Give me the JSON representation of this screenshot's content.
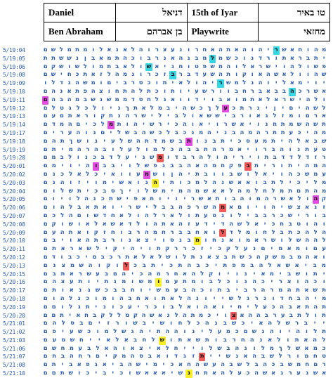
{
  "header": {
    "first_name_en": "Daniel",
    "first_name_he": "דניאל",
    "date_en": "15th of Iyar",
    "date_he": "טו באיר",
    "surname_en": "Ben Abraham",
    "surname_he": "בן אברהם",
    "profession_en": "Playwrite",
    "profession_he": "מחזאי"
  },
  "colors": {
    "text": "#2a5db0",
    "highlight_cyan": "#35d7e6",
    "highlight_yellow": "#f6ee2b",
    "highlight_magenta": "#e24ee0",
    "highlight_red": "#f05a5a"
  },
  "grid": {
    "rows": [
      {
        "date": "5/19:04",
        "text": "מהוחאשריהוהאתהאחרונעצרוהלאנאלומתמלשם",
        "hl": [
          {
            "i": 6,
            "c": "cyan"
          }
        ]
      },
      {
        "date": "5/19:05",
        "text": "יתבראתורדנוכשמלמבנהאנרבוכהתמאבןנששתת",
        "hl": [
          {
            "i": 14,
            "c": "cyan"
          }
        ]
      },
      {
        "date": "5/19:06",
        "text": "פשולהוישראלוהמשפטוחניאשולאבתמולשושקם",
        "hl": [
          {
            "i": 22,
            "c": "cyan"
          }
        ]
      },
      {
        "date": "5/19:08",
        "text": "שהוולאשהאוקותהשעדברבזכרונמהלזאתכחישם",
        "hl": [
          {
            "i": 19,
            "c": "cyan"
          }
        ]
      },
      {
        "date": "5/19:09",
        "text": "יוימאליוהנלמשריהולאיתוכסרביםומשהגדלו",
        "hl": [
          {
            "i": 13,
            "c": "cyan"
          }
        ]
      },
      {
        "date": "5/19:10",
        "text": "אשרכהבבאברחבוורשעיותוכתלהתחוצהפתאנהם",
        "hl": [
          {
            "i": 4,
            "c": "cyan"
          }
        ]
      },
      {
        "date": "5/19:11",
        "text": "ולהישראלאתמואבוידוואנלחסדממשנשבמהבהם",
        "hl": [
          {
            "i": 35,
            "c": "magenta"
          },
          {
            "i": 36,
            "c": "red"
          }
        ]
      },
      {
        "date": "5/19:12",
        "text": "לשהיםיןינרתכעלךכשהיבמלאתךניולכלגטלם",
        "hl": [
          {
            "i": 12,
            "c": "magenta"
          },
          {
            "i": 35,
            "c": "red"
          }
        ]
      },
      {
        "date": "5/19:13",
        "text": "ארםומזלגאורביששאולבילישרהנתקוראתםעם",
        "hl": []
      },
      {
        "date": "5/19:14",
        "text": "תשהשמתחנויאשרויאוהכירשיהותמלכיםהמדם",
        "hl": [
          {
            "i": 26,
            "c": "magenta"
          }
        ]
      },
      {
        "date": "5/19:17",
        "text": "מהיכעתתרהמהבניהמנכבלכשהבשליםנוהערים",
        "hl": []
      },
      {
        "date": "5/19:18",
        "text": "שבאלהיתמעסכיתבנותבשמדתהשלעיגושךתהם",
        "hl": [
          {
            "i": 16,
            "c": "magenta"
          }
        ]
      },
      {
        "date": "5/19:19",
        "text": "טעתנוהברויאמרהתבבהכלמולעלובהרהמיתם",
        "hl": []
      },
      {
        "date": "5/19:20",
        "text": "רזדלדדבתויריהולהרבדומשניעלדבכנולבמם",
        "hl": [
          {
            "i": 20,
            "c": "red"
          }
        ]
      },
      {
        "date": "5/20:01",
        "text": "המהיתוריתבפקחמהאהבבנפשלויבבוהיוימם",
        "hl": [
          {
            "i": 27,
            "c": "magenta"
          },
          {
            "i": 9,
            "c": "red"
          }
        ]
      },
      {
        "date": "5/20:02",
        "text": "עמשכהויאלושבוובתיהןושמעוואיכלאלכנם",
        "hl": [
          {
            "i": 21,
            "c": "magenta"
          }
        ]
      },
      {
        "date": "5/20:03",
        "text": "מליכילתבואאשנהלמכותיהנואשימויזוהנם",
        "hl": [
          {
            "i": 20,
            "c": "yellow"
          }
        ]
      },
      {
        "date": "5/20:04",
        "text": "מהתםתמלחלמהלאאשמהמימשלויךסבכיתשלום",
        "hl": [
          {
            "i": 36,
            "c": "magenta"
          }
        ]
      },
      {
        "date": "5/20:05",
        "text": "קהולאשרהמוהבותאשריויותאפישתכנהלויום",
        "hl": [
          {
            "i": 1,
            "c": "magenta"
          }
        ]
      },
      {
        "date": "5/20:06",
        "text": "זנאצשיהויוםאמהשרפהבבלישריואתאבלהום",
        "hl": [
          {
            "i": 12,
            "c": "red"
          }
        ]
      },
      {
        "date": "5/20:07",
        "text": "בורישכרבבילונטעתולארלהולאחדשוםהלכם",
        "hl": []
      },
      {
        "date": "5/20:08",
        "text": "והוטבחכיאלשהדידעזהאתהולדאשאלאושוקם",
        "hl": []
      },
      {
        "date": "5/20:09",
        "text": "הלהכתבלחומלדלואחבברחמהרבוחזקואתהעם",
        "hl": [
          {
            "i": 12,
            "c": "red"
          }
        ]
      },
      {
        "date": "5/20:10",
        "text": "לההשלושראמואנחומבנסויצאנורבתהאויבם",
        "hl": [
          {
            "i": 15,
            "c": "yellow"
          }
        ]
      },
      {
        "date": "5/20:11",
        "text": "עםומאמיםנעלקכיזכררקתויהיקילשאראתם",
        "hl": []
      },
      {
        "date": "5/20:12",
        "text": "ואהמבמשקהכשתבצאנתלושלאלאתרכבםיכבודם",
        "hl": []
      },
      {
        "date": "5/20:13",
        "text": "מביאשאלהבמפתיכבהתכיתבכלוקוהשמצנם",
        "hl": [
          {
            "i": 22,
            "c": "red"
          }
        ]
      },
      {
        "date": "5/20:15",
        "text": "יתושבימאינויוקלהאחרמהכיהםבעשראתבם",
        "hl": []
      },
      {
        "date": "5/20:16",
        "text": "וכהוצריכהנוכלבומתעמומשומנתיותעצהם",
        "hl": [
          {
            "i": 19,
            "c": "yellow"
          }
        ]
      },
      {
        "date": "5/20:17",
        "text": "תשאתהמרהרביבתוכהבעמשיוחבבכשגנאותם",
        "hl": []
      },
      {
        "date": "5/20:18",
        "text": "מיהבחדונרגלשייונהלאתואחבהומוכנלהום",
        "hl": []
      },
      {
        "date": "5/20:19",
        "text": "תהתאבהכעליחיואהואלבוכריעכוניתגלוםם",
        "hl": []
      },
      {
        "date": "5/20:20",
        "text": "תולתבערבההאצויכמתהלנאשהקמללקבחאיתםם",
        "hl": [
          {
            "i": 11,
            "c": "red"
          }
        ]
      },
      {
        "date": "5/21:01",
        "text": "ייברשלהאיכשבנהכלחושיבשורזיםבסלהם",
        "hl": []
      },
      {
        "date": "5/21:02",
        "text": "תלוהיוהנשםכמעלינוההתיהגשלמוכשעיפם",
        "hl": []
      },
      {
        "date": "5/21:03",
        "text": "להאתולאנהחרבותשאתושלחבאלאייחשמעם",
        "hl": [
          {
            "i": 18,
            "c": "yellow"
          }
        ]
      },
      {
        "date": "5/21:06",
        "text": "כמאשלךמלונהבשלוייחלאיצאוהאלבעמחשם",
        "hl": []
      },
      {
        "date": "5/21:07",
        "text": "טחמורלשבהאנשייתזגדואבסהמקיםרחהבחם",
        "hl": [
          {
            "i": 14,
            "c": "red"
          }
        ]
      },
      {
        "date": "5/21:08",
        "text": "רםחמשבכהבלשבהעשהחאכימישהביאגפאביתם",
        "hl": []
      },
      {
        "date": "5/21:10",
        "text": "אשגערגאשהכעלהאתחנשיאאאשוכיביכושתםם",
        "hl": [
          {
            "i": 16,
            "c": "yellow"
          }
        ]
      }
    ]
  }
}
